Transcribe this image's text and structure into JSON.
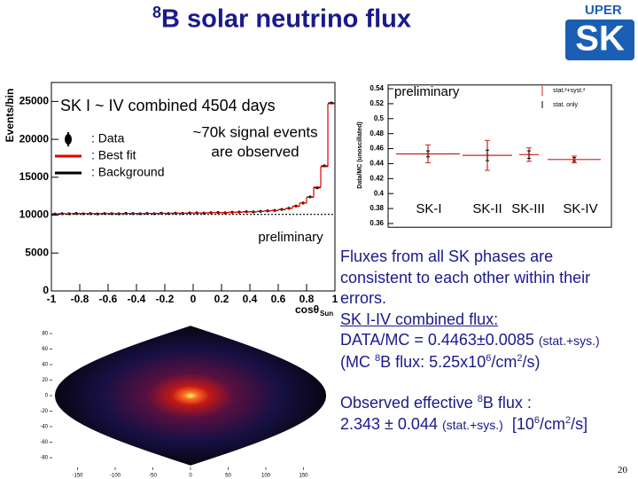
{
  "title": {
    "sup": "8",
    "text": "B solar neutrino flux"
  },
  "logo": {
    "top": "UPER",
    "main": "SK"
  },
  "chart_data": [
    {
      "type": "histogram",
      "title": "SK I ~ IV combined 4504 days",
      "annotations": [
        "~70k signal events",
        "are observed",
        "preliminary"
      ],
      "x_label": "cosθ",
      "x_label_sub": "Sun",
      "y_label": "Events/bin",
      "bins": [
        -1,
        -0.95,
        -0.9,
        -0.85,
        -0.8,
        -0.75,
        -0.7,
        -0.65,
        -0.6,
        -0.55,
        -0.5,
        -0.45,
        -0.4,
        -0.35,
        -0.3,
        -0.25,
        -0.2,
        -0.15,
        -0.1,
        -0.05,
        0,
        0.05,
        0.1,
        0.15,
        0.2,
        0.25,
        0.3,
        0.35,
        0.4,
        0.45,
        0.5,
        0.55,
        0.6,
        0.65,
        0.7,
        0.75,
        0.8,
        0.85,
        0.9,
        0.95,
        1
      ],
      "series": [
        {
          "name": ": Data",
          "color": "#000000",
          "style": "points",
          "values": [
            10150,
            10200,
            10180,
            10230,
            10190,
            10210,
            10170,
            10220,
            10200,
            10180,
            10240,
            10210,
            10190,
            10230,
            10200,
            10250,
            10220,
            10260,
            10240,
            10280,
            10300,
            10270,
            10320,
            10340,
            10310,
            10380,
            10400,
            10450,
            10430,
            10500,
            10560,
            10620,
            10750,
            10900,
            11200,
            11600,
            12400,
            13600,
            16500,
            24800
          ]
        },
        {
          "name": ": Best fit",
          "color": "#e00000",
          "style": "step",
          "values": [
            10180,
            10180,
            10190,
            10190,
            10200,
            10200,
            10200,
            10210,
            10210,
            10210,
            10220,
            10220,
            10220,
            10230,
            10230,
            10240,
            10240,
            10250,
            10260,
            10270,
            10280,
            10290,
            10310,
            10320,
            10340,
            10360,
            10390,
            10420,
            10450,
            10490,
            10540,
            10610,
            10720,
            10880,
            11150,
            11600,
            12350,
            13700,
            16400,
            24700
          ]
        },
        {
          "name": ": Background",
          "color": "#000000",
          "style": "dashed",
          "values": [
            10100,
            10100,
            10100,
            10100,
            10100,
            10100,
            10100,
            10100,
            10100,
            10100,
            10100,
            10100,
            10100,
            10100,
            10100,
            10100,
            10100,
            10100,
            10100,
            10100,
            10100,
            10100,
            10100,
            10100,
            10100,
            10100,
            10100,
            10100,
            10100,
            10100,
            10100,
            10100,
            10100,
            10100,
            10100,
            10100,
            10100,
            10100,
            10100,
            10100
          ]
        }
      ],
      "xlim": [
        -1,
        1
      ],
      "ylim": [
        0,
        27500
      ],
      "xticks": [
        -1,
        -0.8,
        -0.6,
        -0.4,
        -0.2,
        0,
        0.2,
        0.4,
        0.6,
        0.8,
        1
      ],
      "yticks": [
        0,
        5000,
        10000,
        15000,
        20000,
        25000
      ]
    },
    {
      "type": "errorbar",
      "y_label": "Data/MC (unoscillated)",
      "annotation": "preliminary",
      "categories": [
        "SK-I",
        "SK-II",
        "SK-III",
        "SK-IV"
      ],
      "values": [
        0.453,
        0.451,
        0.452,
        0.4455
      ],
      "errors": [
        0.012,
        0.02,
        0.009,
        0.0045
      ],
      "stat_errors": [
        0.004,
        0.007,
        0.005,
        0.0025
      ],
      "legend": [
        "stat.²+syst.²",
        "stat. only"
      ],
      "color": "#cc2222",
      "ylim": [
        0.355,
        0.545
      ],
      "yticks": [
        0.36,
        0.38,
        0.4,
        0.42,
        0.44,
        0.46,
        0.48,
        0.5,
        0.52,
        0.54
      ]
    },
    {
      "type": "skymap",
      "xlim": [
        -180,
        180
      ],
      "ylim": [
        -90,
        90
      ],
      "xticks": [
        -150,
        -100,
        -50,
        0,
        50,
        100,
        150
      ],
      "yticks": [
        -80,
        -60,
        -40,
        -20,
        0,
        20,
        40,
        60,
        80
      ]
    }
  ],
  "notes": {
    "paragraphs": [
      [
        [
          {
            "text": "Fluxes from all SK phases are"
          }
        ],
        [
          {
            "text": "consistent to each other within their"
          }
        ],
        [
          {
            "text": "errors."
          }
        ],
        [
          {
            "text": "SK I-IV combined flux:",
            "underline": true
          }
        ],
        [
          {
            "text": "DATA/MC = 0.4463±0.0085 "
          },
          {
            "text": "(stat.+sys.)",
            "small": true
          }
        ],
        [
          {
            "text": "(MC "
          },
          {
            "text": "8",
            "sup": true
          },
          {
            "text": "B flux: 5.25x10"
          },
          {
            "text": "6",
            "sup": true
          },
          {
            "text": "/cm"
          },
          {
            "text": "2",
            "sup": true
          },
          {
            "text": "/s)"
          }
        ]
      ],
      [
        [
          {
            "text": "Observed effective "
          },
          {
            "text": "8",
            "sup": true
          },
          {
            "text": "B flux :"
          }
        ],
        [
          {
            "text": "2.343 ± 0.044 "
          },
          {
            "text": "(stat.+sys.)",
            "small": true
          },
          {
            "text": "  [10"
          },
          {
            "text": "6",
            "sup": true
          },
          {
            "text": "/cm"
          },
          {
            "text": "2",
            "sup": true
          },
          {
            "text": "/s]"
          }
        ]
      ]
    ]
  },
  "page_number": "20"
}
